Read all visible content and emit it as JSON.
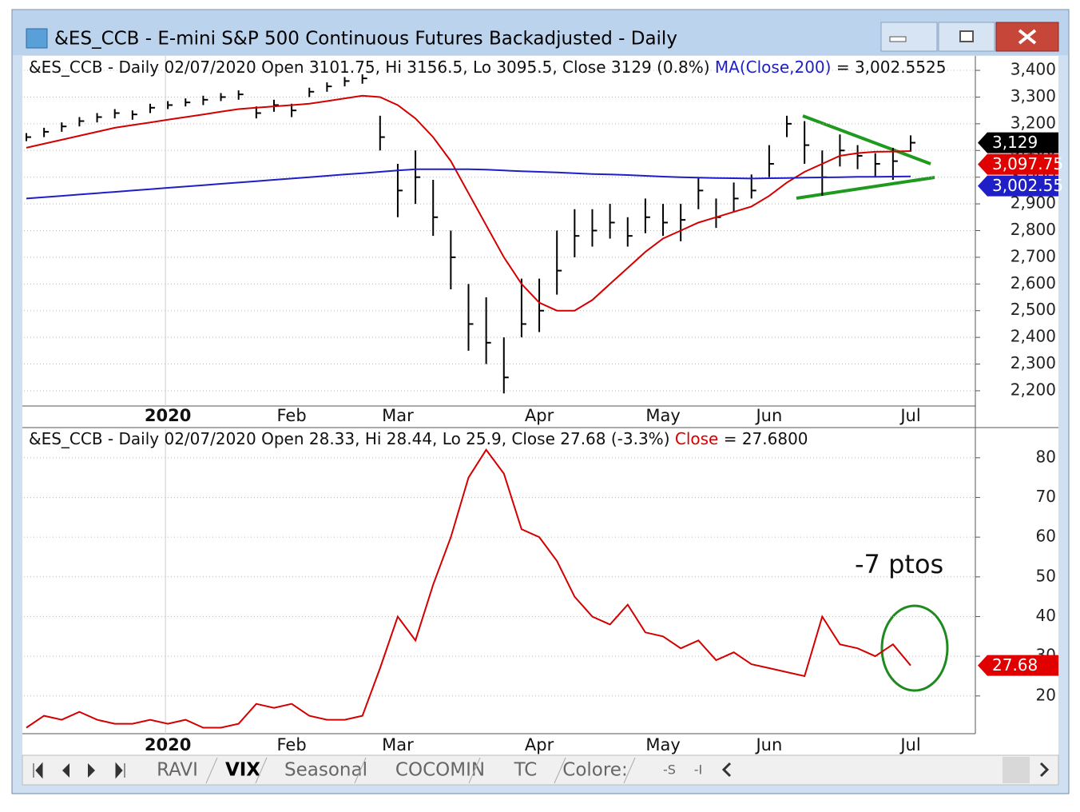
{
  "window": {
    "title": "&ES_CCB - E-mini S&P 500 Continuous Futures Backadjusted - Daily"
  },
  "tabs": [
    "RAVI",
    "VIX",
    "Seasonal",
    "COCOMIN",
    "TC",
    "Colore:",
    "-S",
    "-I"
  ],
  "chart_data": [
    {
      "type": "ohlc",
      "header": [
        "&ES_CCB - Daily 02/07/2020 Open 3101.75, Hi 3156.5, Lo 3095.5, Close 3129 (0.8%) ",
        " = 3,002.5525"
      ],
      "categories": [
        null,
        null,
        null,
        null,
        null,
        null,
        null,
        null,
        "2020",
        null,
        null,
        null,
        null,
        null,
        null,
        "Feb",
        null,
        null,
        null,
        null,
        null,
        "Mar",
        null,
        null,
        null,
        null,
        null,
        null,
        null,
        "Apr",
        null,
        null,
        null,
        null,
        null,
        null,
        "May",
        null,
        null,
        null,
        null,
        null,
        "Jun",
        null,
        null,
        null,
        null,
        null,
        null,
        null,
        "Jul"
      ],
      "close": [
        3150,
        3170,
        3190,
        3210,
        3225,
        3240,
        3235,
        3260,
        3270,
        3280,
        3290,
        3300,
        3310,
        3240,
        3270,
        3250,
        3320,
        3340,
        3360,
        3370,
        3150,
        2950,
        3000,
        2850,
        2700,
        2450,
        2380,
        2250,
        2450,
        2500,
        2650,
        2780,
        2800,
        2830,
        2780,
        2850,
        2830,
        2840,
        2950,
        2850,
        2920,
        2950,
        3050,
        3200,
        3120,
        3000,
        3100,
        3080,
        3050,
        3060,
        3129
      ],
      "high": [
        3165,
        3185,
        3205,
        3225,
        3240,
        3255,
        3250,
        3275,
        3285,
        3295,
        3305,
        3315,
        3325,
        3265,
        3290,
        3275,
        3335,
        3355,
        3375,
        3385,
        3230,
        3050,
        3100,
        2990,
        2800,
        2600,
        2550,
        2400,
        2620,
        2620,
        2800,
        2880,
        2880,
        2900,
        2850,
        2920,
        2900,
        2900,
        3000,
        2920,
        2980,
        3010,
        3120,
        3230,
        3210,
        3100,
        3160,
        3120,
        3090,
        3110,
        3156.5
      ],
      "low": [
        3135,
        3150,
        3170,
        3190,
        3205,
        3220,
        3215,
        3240,
        3255,
        3265,
        3270,
        3285,
        3290,
        3220,
        3245,
        3225,
        3300,
        3320,
        3340,
        3350,
        3100,
        2850,
        2900,
        2780,
        2580,
        2350,
        2300,
        2190,
        2400,
        2420,
        2560,
        2700,
        2740,
        2770,
        2740,
        2790,
        2780,
        2760,
        2880,
        2810,
        2870,
        2920,
        3000,
        3150,
        3050,
        2930,
        3040,
        3030,
        3000,
        2990,
        3095.5
      ],
      "color": "#000000",
      "series": [
        {
          "color": "#d40000",
          "values": [
            3110,
            3125,
            3140,
            3155,
            3170,
            3185,
            3195,
            3205,
            3215,
            3225,
            3235,
            3245,
            3255,
            3260,
            3265,
            3270,
            3275,
            3285,
            3295,
            3305,
            3300,
            3270,
            3220,
            3150,
            3060,
            2940,
            2820,
            2700,
            2600,
            2530,
            2500,
            2500,
            2540,
            2600,
            2660,
            2720,
            2770,
            2800,
            2830,
            2850,
            2870,
            2890,
            2930,
            2980,
            3020,
            3050,
            3080,
            3090,
            3095,
            3096,
            3097.75
          ]
        },
        {
          "name": "MA(Close,200)",
          "color": "#1f1fc8",
          "values": [
            2920,
            2925,
            2930,
            2935,
            2940,
            2945,
            2950,
            2955,
            2960,
            2965,
            2970,
            2975,
            2980,
            2985,
            2990,
            2995,
            3000,
            3005,
            3010,
            3015,
            3020,
            3025,
            3030,
            3030,
            3030,
            3030,
            3028,
            3025,
            3022,
            3020,
            3018,
            3015,
            3012,
            3010,
            3008,
            3005,
            3002,
            3000,
            2998,
            2997,
            2996,
            2995,
            2996,
            2997,
            2998,
            2999,
            3000,
            3001,
            3001,
            3002,
            3002.55
          ]
        }
      ],
      "last_labels": [
        {
          "value": 3129,
          "label": "3,129",
          "color": "#000000"
        },
        {
          "value": 3097.75,
          "label": "3,097.75",
          "color": "#e00000"
        },
        {
          "value": 3002.55,
          "label": "3,002.55",
          "color": "#1f1fc8"
        }
      ],
      "ylim": [
        2143,
        3454
      ],
      "yticks": [
        {
          "value": 2200,
          "label": "2,200"
        },
        {
          "value": 2300,
          "label": "2,300"
        },
        {
          "value": 2400,
          "label": "2,400"
        },
        {
          "value": 2500,
          "label": "2,500"
        },
        {
          "value": 2600,
          "label": "2,600"
        },
        {
          "value": 2700,
          "label": "2,700"
        },
        {
          "value": 2800,
          "label": "2,800"
        },
        {
          "value": 2900,
          "label": "2,900"
        },
        {
          "value": 3000,
          "label": "3,000"
        },
        {
          "value": 3100,
          "label": "3,100"
        },
        {
          "value": 3200,
          "label": "3,200"
        },
        {
          "value": 3300,
          "label": "3,300"
        },
        {
          "value": 3400,
          "label": "3,400"
        }
      ],
      "grid": true
    },
    {
      "type": "line",
      "header": [
        "&ES_CCB - Daily 02/07/2020 Open 28.33, Hi 28.44, Lo 25.9, Close 27.68 (-3.3%) ",
        " = 27.6800"
      ],
      "categories": [
        null,
        null,
        null,
        null,
        null,
        null,
        null,
        null,
        "2020",
        null,
        null,
        null,
        null,
        null,
        null,
        "Feb",
        null,
        null,
        null,
        null,
        null,
        "Mar",
        null,
        null,
        null,
        null,
        null,
        null,
        null,
        "Apr",
        null,
        null,
        null,
        null,
        null,
        null,
        "May",
        null,
        null,
        null,
        null,
        null,
        "Jun",
        null,
        null,
        null,
        null,
        null,
        null,
        null,
        "Jul"
      ],
      "series": [
        {
          "name": "Close",
          "color": "#d40000",
          "values": [
            12,
            15,
            14,
            16,
            14,
            13,
            13,
            14,
            13,
            14,
            12,
            12,
            13,
            18,
            17,
            18,
            15,
            14,
            14,
            15,
            27,
            40,
            34,
            48,
            60,
            75,
            82,
            76,
            62,
            60,
            54,
            45,
            40,
            38,
            43,
            36,
            35,
            32,
            34,
            29,
            31,
            28,
            27,
            26,
            25,
            40,
            33,
            32,
            30,
            33,
            27.68
          ]
        }
      ],
      "last_labels": [
        {
          "value": 27.68,
          "label": "27.68",
          "color": "#e00000"
        }
      ],
      "annotation": "-7 ptos",
      "ylim": [
        10.5,
        87.2
      ],
      "yticks": [
        20,
        30,
        40,
        50,
        60,
        70,
        80
      ],
      "grid": true
    }
  ]
}
